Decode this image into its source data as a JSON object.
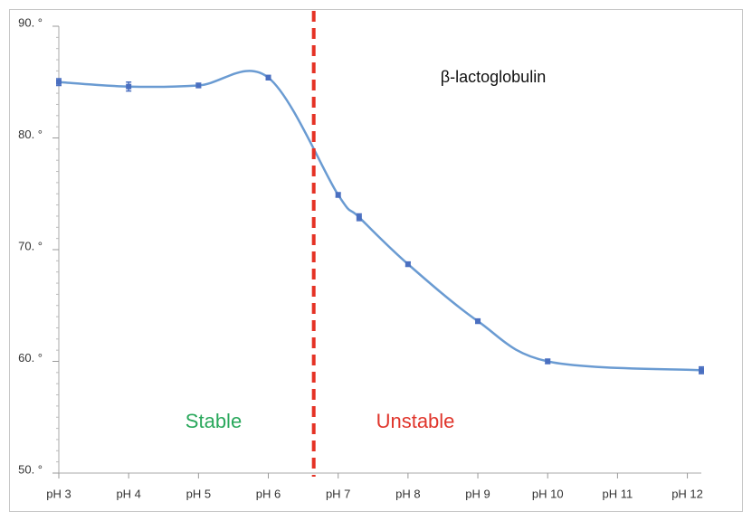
{
  "chart_data": {
    "type": "line",
    "annotations": {
      "protein": "β-lactoglobulin",
      "stable": "Stable",
      "unstable": "Unstable"
    },
    "x": [
      3,
      4,
      5,
      6,
      7,
      7.3,
      8,
      9,
      10,
      12.2
    ],
    "series": [
      {
        "color": "#6a9bd2",
        "marker_color": "#4a6fc0",
        "values": [
          85.0,
          84.6,
          84.7,
          85.4,
          74.9,
          72.9,
          68.7,
          63.6,
          60.0,
          59.2
        ],
        "errors": [
          0.3,
          0.4,
          0.2,
          0.2,
          0.2,
          0.3,
          0.2,
          0.2,
          0.2,
          0.3
        ]
      }
    ],
    "divider_x": 6.65,
    "divider_color": "#e53225",
    "xlim": [
      3,
      12.2
    ],
    "xticks": [
      {
        "value": 3,
        "label": "pH 3"
      },
      {
        "value": 4,
        "label": "pH 4"
      },
      {
        "value": 5,
        "label": "pH 5"
      },
      {
        "value": 6,
        "label": "pH 6"
      },
      {
        "value": 7,
        "label": "pH 7"
      },
      {
        "value": 8,
        "label": "pH 8"
      },
      {
        "value": 9,
        "label": "pH 9"
      },
      {
        "value": 10,
        "label": "pH 10"
      },
      {
        "value": 11,
        "label": "pH 11"
      },
      {
        "value": 12,
        "label": "pH 12"
      }
    ],
    "ylim": [
      50,
      90
    ],
    "yticks": [
      {
        "value": 50,
        "label": "50. °"
      },
      {
        "value": 60,
        "label": "60. °"
      },
      {
        "value": 70,
        "label": "70. °"
      },
      {
        "value": 80,
        "label": "80. °"
      },
      {
        "value": 90,
        "label": "90. °"
      }
    ]
  }
}
